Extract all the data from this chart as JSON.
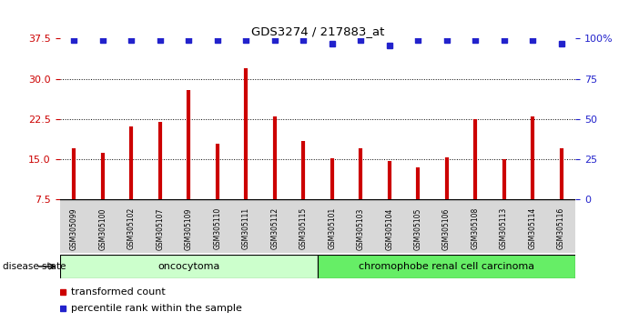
{
  "title": "GDS3274 / 217883_at",
  "samples": [
    "GSM305099",
    "GSM305100",
    "GSM305102",
    "GSM305107",
    "GSM305109",
    "GSM305110",
    "GSM305111",
    "GSM305112",
    "GSM305115",
    "GSM305101",
    "GSM305103",
    "GSM305104",
    "GSM305105",
    "GSM305106",
    "GSM305108",
    "GSM305113",
    "GSM305114",
    "GSM305116"
  ],
  "red_values": [
    17.0,
    16.2,
    21.2,
    22.0,
    28.0,
    18.0,
    32.0,
    23.0,
    18.5,
    15.2,
    17.0,
    14.7,
    13.5,
    15.3,
    22.5,
    15.0,
    23.0,
    17.0
  ],
  "blue_values": [
    37.3,
    37.3,
    37.3,
    37.3,
    37.3,
    37.3,
    37.3,
    37.3,
    37.3,
    36.5,
    37.3,
    36.2,
    37.3,
    37.3,
    37.3,
    37.3,
    37.3,
    36.5
  ],
  "group1_label": "oncocytoma",
  "group2_label": "chromophobe renal cell carcinoma",
  "group1_count": 9,
  "group2_count": 9,
  "ylim_min": 7.5,
  "ylim_max": 37.5,
  "yticks": [
    7.5,
    15.0,
    22.5,
    30.0,
    37.5
  ],
  "right_yticks": [
    0,
    25,
    50,
    75,
    100
  ],
  "bar_color": "#CC0000",
  "blue_color": "#2222CC",
  "group1_bg": "#CCFFCC",
  "group2_bg": "#66EE66",
  "tick_label_bg": "#D8D8D8",
  "legend_red_label": "transformed count",
  "legend_blue_label": "percentile rank within the sample"
}
